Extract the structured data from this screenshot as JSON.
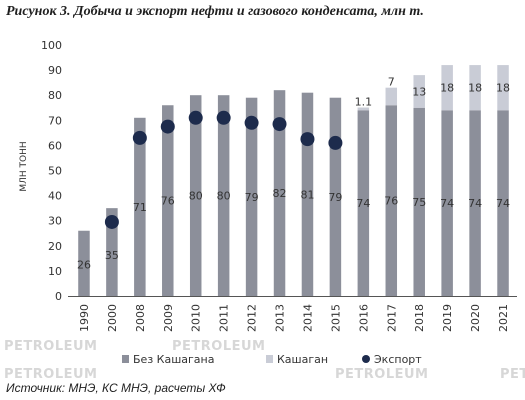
{
  "title": "Рисунок 3. Добыча и экспорт нефти и газового конденсата, млн т.",
  "source": "Источник: МНЭ, КС МНЭ, расчеты ХФ",
  "watermarks": [
    "PETROLEUM",
    "PETROLEUM",
    "PETROLEUM",
    "PETROLEUM",
    "PETR"
  ],
  "colors": {
    "base": "#8c8f9a",
    "kashagan": "#c9ccd6",
    "export": "#1d2b4c",
    "axis": "#555555",
    "grid": "#dddddd"
  },
  "chart_data": {
    "type": "bar",
    "stacked": true,
    "categories": [
      "1990",
      "2000",
      "2008",
      "2009",
      "2010",
      "2011",
      "2012",
      "2013",
      "2014",
      "2015",
      "2016",
      "2017",
      "2018",
      "2019",
      "2020",
      "2021"
    ],
    "series": [
      {
        "name": "Без Кашагана",
        "values": [
          26,
          35,
          71,
          76,
          80,
          80,
          79,
          82,
          81,
          79,
          74,
          76,
          75,
          74,
          74,
          74
        ],
        "labels": [
          "26",
          "35",
          "71",
          "76",
          "80",
          "80",
          "79",
          "82",
          "81",
          "79",
          "74",
          "76",
          "75",
          "74",
          "74",
          "74"
        ]
      },
      {
        "name": "Кашаган",
        "values": [
          0,
          0,
          0,
          0,
          0,
          0,
          0,
          0,
          0,
          0,
          1.1,
          7,
          13,
          18,
          18,
          18
        ],
        "labels": [
          "",
          "",
          "",
          "",
          "",
          "",
          "",
          "",
          "",
          "",
          "1.1",
          "7",
          "13",
          "18",
          "18",
          "18"
        ]
      },
      {
        "name": "Экспорт",
        "kind": "marker",
        "values": [
          null,
          29.5,
          63,
          67.5,
          71,
          71,
          69,
          68.5,
          62.5,
          61,
          null,
          null,
          null,
          null,
          null,
          null
        ]
      }
    ],
    "ylabel": "МЛН ТОНН",
    "xlabel": "",
    "ylim": [
      0,
      100
    ],
    "yticks": [
      0,
      10,
      20,
      30,
      40,
      50,
      60,
      70,
      80,
      90,
      100
    ],
    "grid": false,
    "legend": "bottom"
  }
}
